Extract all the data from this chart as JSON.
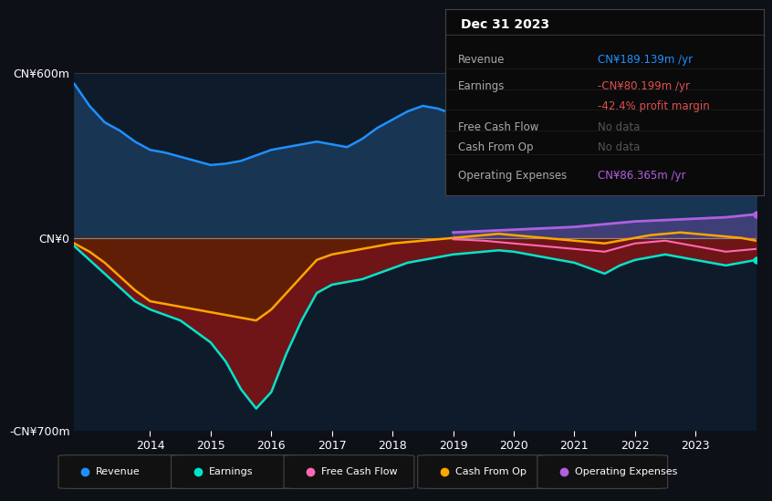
{
  "bg_color": "#0d1117",
  "plot_bg_color": "#0d1b2a",
  "years": [
    2012.75,
    2013,
    2013.25,
    2013.5,
    2013.75,
    2014,
    2014.25,
    2014.5,
    2014.75,
    2015,
    2015.25,
    2015.5,
    2015.75,
    2016,
    2016.25,
    2016.5,
    2016.75,
    2017,
    2017.25,
    2017.5,
    2017.75,
    2018,
    2018.25,
    2018.5,
    2018.75,
    2019,
    2019.25,
    2019.5,
    2019.75,
    2020,
    2020.25,
    2020.5,
    2020.75,
    2021,
    2021.25,
    2021.5,
    2021.75,
    2022,
    2022.25,
    2022.5,
    2022.75,
    2023,
    2023.25,
    2023.5,
    2023.75,
    2024
  ],
  "revenue": [
    560,
    480,
    420,
    390,
    350,
    320,
    310,
    295,
    280,
    265,
    270,
    280,
    300,
    320,
    330,
    340,
    350,
    340,
    330,
    360,
    400,
    430,
    460,
    480,
    470,
    450,
    420,
    400,
    390,
    370,
    350,
    330,
    320,
    280,
    260,
    270,
    290,
    310,
    330,
    340,
    330,
    310,
    280,
    260,
    270,
    189
  ],
  "earnings": [
    -30,
    -80,
    -130,
    -180,
    -230,
    -260,
    -280,
    -300,
    -340,
    -380,
    -450,
    -550,
    -620,
    -560,
    -420,
    -300,
    -200,
    -170,
    -160,
    -150,
    -130,
    -110,
    -90,
    -80,
    -70,
    -60,
    -55,
    -50,
    -45,
    -50,
    -60,
    -70,
    -80,
    -90,
    -110,
    -130,
    -100,
    -80,
    -70,
    -60,
    -70,
    -80,
    -90,
    -100,
    -90,
    -80
  ],
  "cash_from_op": [
    -20,
    -50,
    -90,
    -140,
    -190,
    -230,
    -240,
    -250,
    -260,
    -270,
    -280,
    -290,
    -300,
    -260,
    -200,
    -140,
    -80,
    -60,
    -50,
    -40,
    -30,
    -20,
    -15,
    -10,
    -5,
    0,
    5,
    10,
    15,
    10,
    5,
    0,
    -5,
    -10,
    -15,
    -20,
    -10,
    0,
    10,
    15,
    20,
    15,
    10,
    5,
    0,
    -10
  ],
  "op_exp_x": [
    2019,
    2019.5,
    2020,
    2020.5,
    2021,
    2021.5,
    2022,
    2022.5,
    2023,
    2023.5,
    2024
  ],
  "op_exp_y": [
    20,
    25,
    30,
    35,
    40,
    50,
    60,
    65,
    70,
    75,
    86
  ],
  "fcf_x": [
    2019,
    2019.5,
    2020,
    2020.5,
    2021,
    2021.5,
    2022,
    2022.5,
    2023,
    2023.5,
    2024
  ],
  "fcf_y": [
    -5,
    -10,
    -20,
    -30,
    -40,
    -50,
    -20,
    -10,
    -30,
    -50,
    -40
  ],
  "revenue_color": "#1e90ff",
  "earnings_color": "#00e5cc",
  "free_cash_flow_color": "#ff69b4",
  "cash_from_op_color": "#ffa500",
  "operating_expenses_color": "#b060e0",
  "ylim_top": 600,
  "ylim_bottom": -700,
  "yticks_labels": [
    "CN¥600m",
    "CN¥0",
    "-CN¥700m"
  ],
  "yticks_values": [
    600,
    0,
    -700
  ],
  "xtick_years": [
    2014,
    2015,
    2016,
    2017,
    2018,
    2019,
    2020,
    2021,
    2022,
    2023
  ],
  "legend_labels": [
    "Revenue",
    "Earnings",
    "Free Cash Flow",
    "Cash From Op",
    "Operating Expenses"
  ],
  "legend_colors": [
    "#1e90ff",
    "#00e5cc",
    "#ff69b4",
    "#ffa500",
    "#b060e0"
  ],
  "info_title": "Dec 31 2023",
  "info_rows": [
    {
      "label": "Revenue",
      "value": "CN¥189.139m /yr",
      "value_color": "#1e90ff"
    },
    {
      "label": "Earnings",
      "value": "-CN¥80.199m /yr",
      "value_color": "#e05050"
    },
    {
      "label": "",
      "value": "-42.4% profit margin",
      "value_color": "#e05050"
    },
    {
      "label": "Free Cash Flow",
      "value": "No data",
      "value_color": "#555555"
    },
    {
      "label": "Cash From Op",
      "value": "No data",
      "value_color": "#555555"
    },
    {
      "label": "Operating Expenses",
      "value": "CN¥86.365m /yr",
      "value_color": "#b060e0"
    }
  ]
}
